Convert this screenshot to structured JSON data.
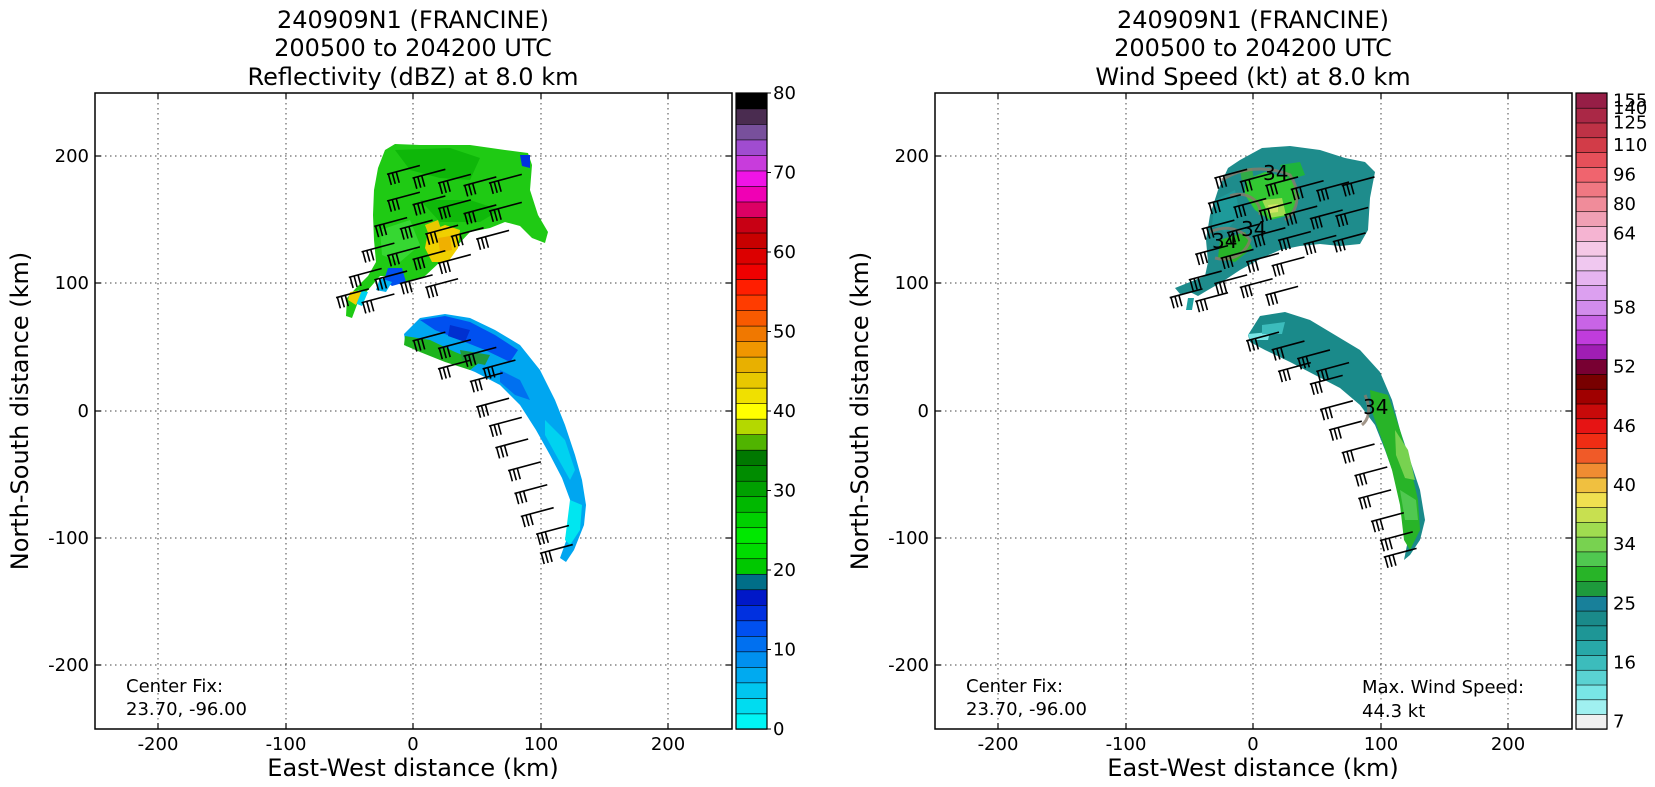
{
  "chart_data": [
    {
      "type": "heatmap",
      "title_lines": [
        "240909N1 (FRANCINE)",
        "200500 to 204200 UTC",
        "Reflectivity (dBZ) at 8.0 km"
      ],
      "xlabel": "East-West distance (km)",
      "ylabel": "North-South distance (km)",
      "xlim": [
        -250,
        250
      ],
      "ylim": [
        -250,
        250
      ],
      "xticks": [
        -200,
        -100,
        0,
        100,
        200
      ],
      "yticks": [
        -200,
        -100,
        0,
        100,
        200
      ],
      "grid": true,
      "annotations": [
        {
          "text": "Center Fix:",
          "x": -225,
          "y": -215
        },
        {
          "text": "23.70, -96.00",
          "x": -225,
          "y": -233
        }
      ],
      "colorbar": {
        "range": [
          0,
          80
        ],
        "ticks": [
          0,
          10,
          20,
          30,
          40,
          50,
          60,
          70,
          80
        ],
        "colors": [
          "#00f5f5",
          "#00dcf0",
          "#00c6f0",
          "#00aaf0",
          "#0090f0",
          "#0070f0",
          "#0050f0",
          "#0030e0",
          "#0018c8",
          "#006e88",
          "#00c800",
          "#00dc00",
          "#00e800",
          "#00d000",
          "#00b800",
          "#00a000",
          "#008c00",
          "#007800",
          "#50b400",
          "#b4d800",
          "#ffff00",
          "#f0e000",
          "#e8c800",
          "#e8b000",
          "#f09600",
          "#f07800",
          "#f85a00",
          "#ff3c00",
          "#ff1e00",
          "#f00000",
          "#dc0000",
          "#c80000",
          "#c80014",
          "#dc0064",
          "#f000b4",
          "#f014e6",
          "#c83cdc",
          "#a04cd0",
          "#78509c",
          "#4a2c50",
          "#000000"
        ]
      },
      "wind_barbs": [
        {
          "x": 5,
          "y": 193
        },
        {
          "x": 25,
          "y": 190
        },
        {
          "x": 45,
          "y": 186
        },
        {
          "x": 65,
          "y": 184
        },
        {
          "x": 85,
          "y": 186
        },
        {
          "x": 5,
          "y": 172
        },
        {
          "x": 25,
          "y": 169
        },
        {
          "x": 45,
          "y": 166
        },
        {
          "x": 65,
          "y": 162
        },
        {
          "x": 85,
          "y": 164
        },
        {
          "x": -5,
          "y": 152
        },
        {
          "x": 15,
          "y": 150
        },
        {
          "x": 35,
          "y": 146
        },
        {
          "x": 55,
          "y": 144
        },
        {
          "x": 75,
          "y": 142
        },
        {
          "x": -15,
          "y": 132
        },
        {
          "x": 5,
          "y": 129
        },
        {
          "x": 25,
          "y": 126
        },
        {
          "x": 45,
          "y": 123
        },
        {
          "x": -25,
          "y": 112
        },
        {
          "x": -5,
          "y": 110
        },
        {
          "x": 15,
          "y": 107
        },
        {
          "x": 35,
          "y": 104
        },
        {
          "x": -35,
          "y": 96
        },
        {
          "x": -15,
          "y": 92
        },
        {
          "x": 25,
          "y": 62
        },
        {
          "x": 45,
          "y": 56
        },
        {
          "x": 65,
          "y": 50
        },
        {
          "x": 80,
          "y": 40
        },
        {
          "x": 45,
          "y": 40
        },
        {
          "x": 70,
          "y": 30
        },
        {
          "x": 75,
          "y": 10
        },
        {
          "x": 85,
          "y": -5
        },
        {
          "x": 90,
          "y": -22
        },
        {
          "x": 100,
          "y": -40
        },
        {
          "x": 105,
          "y": -58
        },
        {
          "x": 110,
          "y": -76
        },
        {
          "x": 122,
          "y": -90
        },
        {
          "x": 125,
          "y": -105
        }
      ]
    },
    {
      "type": "heatmap",
      "title_lines": [
        "240909N1 (FRANCINE)",
        "200500 to 204200 UTC",
        "Wind Speed (kt) at 8.0 km"
      ],
      "xlabel": "East-West distance (km)",
      "ylabel": "North-South distance (km)",
      "xlim": [
        -250,
        250
      ],
      "ylim": [
        -250,
        250
      ],
      "xticks": [
        -200,
        -100,
        0,
        100,
        200
      ],
      "yticks": [
        -200,
        -100,
        0,
        100,
        200
      ],
      "grid": true,
      "annotations": [
        {
          "text": "Center Fix:",
          "x": -225,
          "y": -215
        },
        {
          "text": "23.70, -96.00",
          "x": -225,
          "y": -233
        },
        {
          "text": "Max. Wind Speed:",
          "x": 85,
          "y": -216
        },
        {
          "text": "44.3 kt",
          "x": 85,
          "y": -234
        }
      ],
      "contour_labels": [
        {
          "text": "34",
          "x": 22,
          "y": 185
        },
        {
          "text": "34",
          "x": -25,
          "y": 130
        },
        {
          "text": "34",
          "x": 2,
          "y": 140
        },
        {
          "text": "34",
          "x": 93,
          "y": 3
        }
      ],
      "colorbar": {
        "labels": [
          "7",
          "16",
          "25",
          "34",
          "40",
          "46",
          "52",
          "58",
          "64",
          "80",
          "96",
          "110",
          "125",
          "140",
          "155"
        ],
        "colors": [
          "#f0f0f0",
          "#a0f0f0",
          "#78e6e6",
          "#5ad2d2",
          "#3cbcbc",
          "#28a8a8",
          "#1e9696",
          "#1a8a8a",
          "#18809a",
          "#1e9a3c",
          "#28b428",
          "#50c850",
          "#78d250",
          "#a0dc50",
          "#c8e050",
          "#f0e050",
          "#f0c040",
          "#f08c32",
          "#f05a28",
          "#f02d14",
          "#e61414",
          "#c80a0a",
          "#a00000",
          "#780000",
          "#780032",
          "#a01eb4",
          "#c03cdc",
          "#c864e6",
          "#d28cec",
          "#dca0f0",
          "#e6b4f0",
          "#f0c8f0",
          "#f5c8e6",
          "#f5b4d2",
          "#f0a0b4",
          "#f08c9a",
          "#f07882",
          "#f0646e",
          "#e6505a",
          "#d23c48",
          "#be3246",
          "#aa2846",
          "#961e46"
        ],
        "label_slots": [
          0.5,
          4.5,
          8.5,
          12.5,
          16.5,
          20.5,
          24.5,
          28.5,
          33.5,
          35.5,
          37.5,
          39.5,
          41,
          42,
          42.5
        ]
      },
      "wind_barbs": [
        {
          "x": -5,
          "y": 190
        },
        {
          "x": 15,
          "y": 187
        },
        {
          "x": 35,
          "y": 184
        },
        {
          "x": 55,
          "y": 181
        },
        {
          "x": 75,
          "y": 180
        },
        {
          "x": 95,
          "y": 184
        },
        {
          "x": -10,
          "y": 170
        },
        {
          "x": 10,
          "y": 167
        },
        {
          "x": 30,
          "y": 164
        },
        {
          "x": 50,
          "y": 161
        },
        {
          "x": 70,
          "y": 158
        },
        {
          "x": 90,
          "y": 160
        },
        {
          "x": -15,
          "y": 150
        },
        {
          "x": 5,
          "y": 147
        },
        {
          "x": 25,
          "y": 144
        },
        {
          "x": 45,
          "y": 141
        },
        {
          "x": 65,
          "y": 138
        },
        {
          "x": 88,
          "y": 140
        },
        {
          "x": -20,
          "y": 130
        },
        {
          "x": 0,
          "y": 127
        },
        {
          "x": 20,
          "y": 124
        },
        {
          "x": 40,
          "y": 121
        },
        {
          "x": -25,
          "y": 110
        },
        {
          "x": -5,
          "y": 107
        },
        {
          "x": 15,
          "y": 104
        },
        {
          "x": 35,
          "y": 98
        },
        {
          "x": -40,
          "y": 96
        },
        {
          "x": -20,
          "y": 93
        },
        {
          "x": 20,
          "y": 62
        },
        {
          "x": 40,
          "y": 55
        },
        {
          "x": 60,
          "y": 48
        },
        {
          "x": 75,
          "y": 38
        },
        {
          "x": 45,
          "y": 38
        },
        {
          "x": 70,
          "y": 28
        },
        {
          "x": 78,
          "y": 8
        },
        {
          "x": 85,
          "y": -8
        },
        {
          "x": 95,
          "y": -26
        },
        {
          "x": 105,
          "y": -44
        },
        {
          "x": 108,
          "y": -62
        },
        {
          "x": 118,
          "y": -80
        },
        {
          "x": 125,
          "y": -95
        },
        {
          "x": 128,
          "y": -108
        }
      ]
    }
  ]
}
